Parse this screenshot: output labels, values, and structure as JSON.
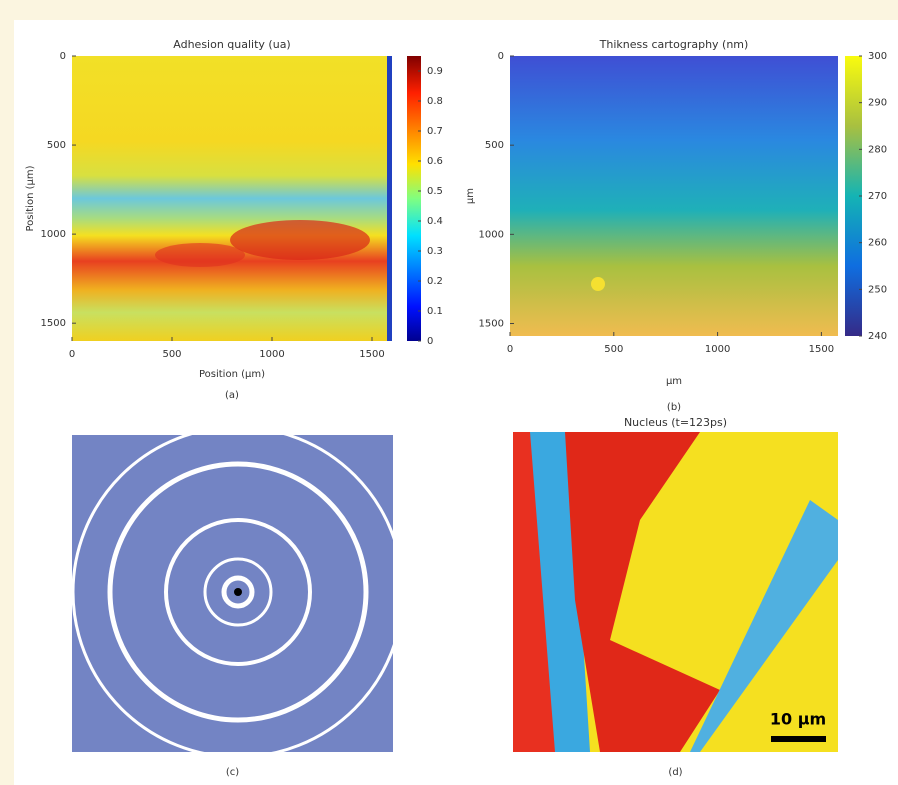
{
  "chart_data": [
    {
      "type": "heatmap",
      "title": "Adhesion quality (ua)",
      "xlabel": "Position (µm)",
      "ylabel": "Position (µm)",
      "xlim": [
        0,
        1600
      ],
      "xticks": [
        0,
        500,
        1000,
        1500
      ],
      "ylim": [
        0,
        1600
      ],
      "yticks": [
        0,
        500,
        1000,
        1500
      ],
      "clim": [
        0,
        0.95
      ],
      "cticks": [
        0,
        0.1,
        0.2,
        0.3,
        0.4,
        0.5,
        0.6,
        0.7,
        0.8,
        0.9
      ],
      "caption": "(a)"
    },
    {
      "type": "heatmap",
      "title": "Thikness cartography (nm)",
      "xlabel": "μm",
      "ylabel": "μm",
      "xlim": [
        0,
        1580
      ],
      "xticks": [
        0,
        500,
        1000,
        1500
      ],
      "ylim": [
        0,
        1570
      ],
      "yticks": [
        0,
        500,
        1000,
        1500
      ],
      "clim": [
        240,
        300
      ],
      "cticks": [
        240,
        250,
        260,
        270,
        280,
        290,
        300
      ],
      "caption": "(b)"
    },
    {
      "type": "image",
      "caption": "(c)"
    },
    {
      "type": "heatmap",
      "title": "Nucleus (t=123ps)",
      "annotation": "10 μm",
      "caption": "(d)"
    }
  ]
}
